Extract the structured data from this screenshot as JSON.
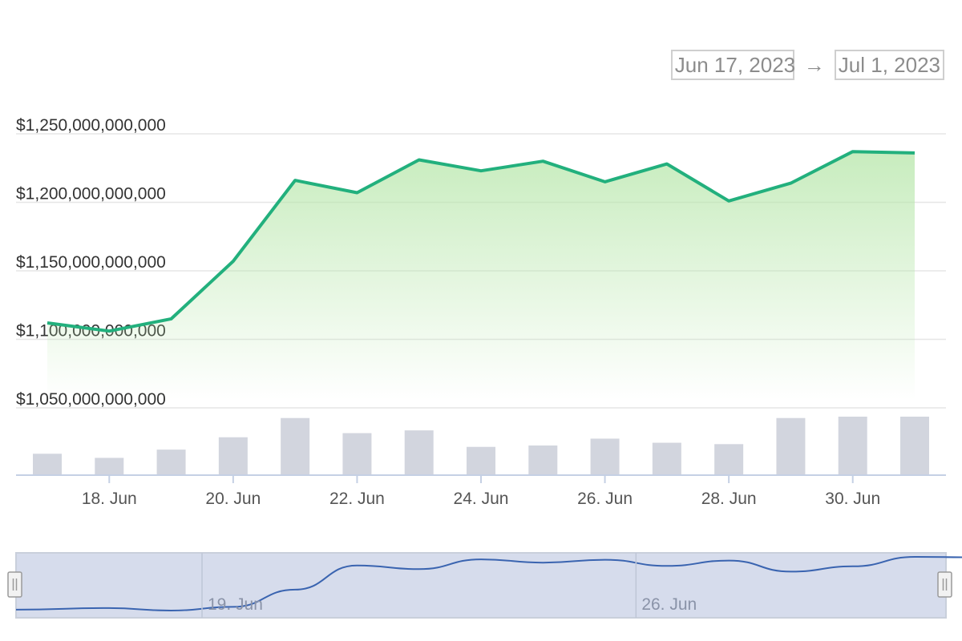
{
  "range_selector": {
    "from": "Jun 17, 2023",
    "arrow": "→",
    "to": "Jul 1, 2023"
  },
  "colors": {
    "line": "#22b07d",
    "area": "#a8e29b",
    "volume": "#d2d5de",
    "navigator_fill": "#d6dcec",
    "navigator_line": "#3a64b0",
    "grid": "#e6e6e6"
  },
  "chart_data": {
    "type": "line",
    "x": [
      "2023-06-17",
      "2023-06-18",
      "2023-06-19",
      "2023-06-20",
      "2023-06-21",
      "2023-06-22",
      "2023-06-23",
      "2023-06-24",
      "2023-06-25",
      "2023-06-26",
      "2023-06-27",
      "2023-06-28",
      "2023-06-29",
      "2023-06-30",
      "2023-07-01"
    ],
    "series": [
      {
        "values": [
          1112000000000,
          1106000000000,
          1115000000000,
          1157000000000,
          1216000000000,
          1207000000000,
          1231000000000,
          1223000000000,
          1230000000000,
          1215000000000,
          1228000000000,
          1201000000000,
          1214000000000,
          1237000000000,
          1236000000000
        ]
      }
    ],
    "volume": [
      1.5,
      1.2,
      1.8,
      2.7,
      4.1,
      3.0,
      3.2,
      2.0,
      2.1,
      2.6,
      2.3,
      2.2,
      4.1,
      4.2,
      4.2
    ],
    "y_ticks": [
      "$1,250,000,000,000",
      "$1,200,000,000,000",
      "$1,150,000,000,000",
      "$1,100,000,000,000",
      "$1,050,000,000,000"
    ],
    "y_tick_values": [
      1250000000000,
      1200000000000,
      1150000000000,
      1100000000000,
      1050000000000
    ],
    "x_ticks": [
      "18. Jun",
      "20. Jun",
      "22. Jun",
      "24. Jun",
      "26. Jun",
      "28. Jun",
      "30. Jun"
    ],
    "x_tick_dates": [
      "2023-06-18",
      "2023-06-20",
      "2023-06-22",
      "2023-06-24",
      "2023-06-26",
      "2023-06-28",
      "2023-06-30"
    ],
    "ylim": [
      1050000000000,
      1250000000000
    ],
    "grid": true,
    "navigator": {
      "labels": [
        "19. Jun",
        "26. Jun"
      ],
      "label_dates": [
        "2023-06-19",
        "2023-06-26"
      ]
    }
  }
}
